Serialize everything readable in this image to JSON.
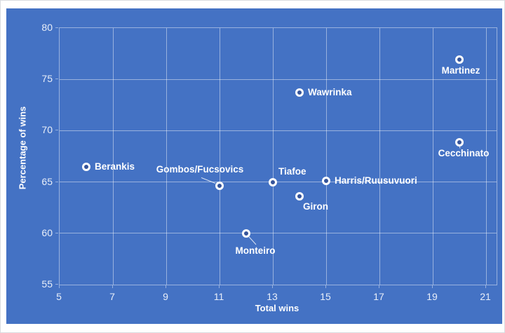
{
  "chart_data": {
    "type": "scatter",
    "title": "",
    "xlabel": "Total wins",
    "ylabel": "Percentage of wins",
    "xlim": [
      5,
      21
    ],
    "ylim": [
      55,
      80
    ],
    "x_ticks": [
      5,
      7,
      9,
      11,
      13,
      15,
      17,
      19,
      21
    ],
    "y_ticks": [
      55,
      60,
      65,
      70,
      75,
      80
    ],
    "grid": true,
    "legend": "none",
    "colors": {
      "chart_background": "#4472C4",
      "gridline": "rgba(255,255,255,0.45)",
      "tick_text": "#e8eef9",
      "label_text": "#ffffff",
      "marker_ring": "#ffffff",
      "marker_fill": "#35549b"
    },
    "points": [
      {
        "label": "Berankis",
        "x": 6,
        "y": 66.5,
        "label_pos": "right"
      },
      {
        "label": "Gombos/Fucsovics",
        "x": 11,
        "y": 64.6,
        "label_pos": "leader-above-left"
      },
      {
        "label": "Tiafoe",
        "x": 13,
        "y": 65.0,
        "label_pos": "above-right"
      },
      {
        "label": "Wawrinka",
        "x": 14,
        "y": 73.7,
        "label_pos": "right"
      },
      {
        "label": "Harris/Ruusuvuori",
        "x": 15,
        "y": 65.1,
        "label_pos": "right"
      },
      {
        "label": "Giron",
        "x": 14,
        "y": 63.6,
        "label_pos": "below-right"
      },
      {
        "label": "Monteiro",
        "x": 12,
        "y": 60.0,
        "label_pos": "leader-below-right"
      },
      {
        "label": "Martinez",
        "x": 20,
        "y": 76.9,
        "label_pos": "below"
      },
      {
        "label": "Cecchinato",
        "x": 20,
        "y": 68.9,
        "label_pos": "below-leader"
      }
    ]
  }
}
